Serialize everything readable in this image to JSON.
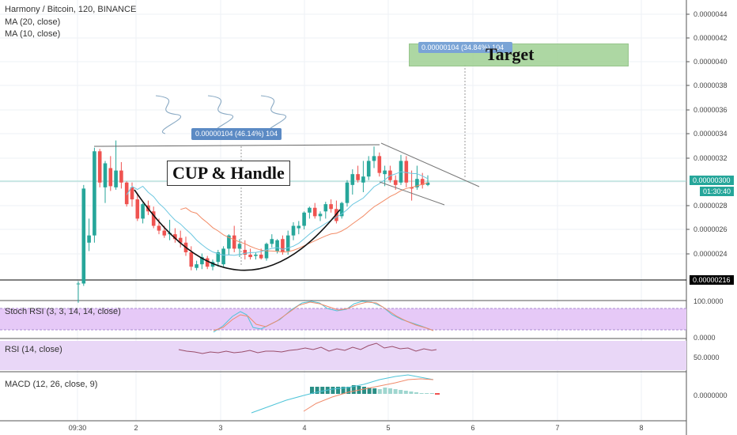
{
  "legend": {
    "title": "Harmony / Bitcoin, 120, BINANCE",
    "ma20": "MA (20, close)",
    "ma10": "MA (10, close)"
  },
  "colors": {
    "up": "#26a69a",
    "down": "#ef5350",
    "ma20": "#f28b66",
    "ma10": "#6cc7e0",
    "grid": "#eef1f5",
    "rsi_bg": "#e9d7f7",
    "stoch_bg": "#e6c9f7",
    "target_box": "#a5d39a",
    "measure_box": "#5b8ac4",
    "current_price_box": "#26a69a",
    "support_price_box": "#000000"
  },
  "annotations": {
    "cup_handle": "CUP & Handle",
    "target": "Target",
    "measure_cup": "0.00000104 (46.14%) 104",
    "measure_target": "0.00000104 (34.84%) 104"
  },
  "price_axis": {
    "ticks": [
      "0.00000440",
      "0.00000420",
      "0.00000400",
      "0.00000380",
      "0.00000360",
      "0.00000340",
      "0.00000320",
      "0.00000280",
      "0.00000260",
      "0.00000240"
    ],
    "current_price": "0.00000300",
    "countdown": "01:30:40",
    "support_price": "0.00000216"
  },
  "time_axis": {
    "labels": [
      "09:30",
      "2",
      "3",
      "4",
      "5",
      "6",
      "7",
      "8"
    ]
  },
  "panes": {
    "stoch_rsi": {
      "label": "Stoch RSI (3, 3, 14, 14, close)",
      "ticks": [
        "100.0000",
        "0.0000"
      ]
    },
    "rsi": {
      "label": "RSI (14, close)",
      "ticks": [
        "50.0000"
      ]
    },
    "macd": {
      "label": "MACD (12, 26, close, 9)",
      "ticks": [
        "0.00000000"
      ]
    }
  },
  "chart_data": {
    "type": "candlestick",
    "title": "Harmony / Bitcoin, 120, BINANCE",
    "y_range": [
      2e-06,
      4.5e-06
    ],
    "x_range": [
      0,
      73
    ],
    "series": [
      {
        "name": "MA (20, close)"
      },
      {
        "name": "MA (10, close)"
      }
    ],
    "candles": [
      {
        "o": 2.16e-06,
        "h": 2.18e-06,
        "l": 2e-06,
        "c": 2.16e-06
      },
      {
        "o": 2.16e-06,
        "h": 2.98e-06,
        "l": 2.14e-06,
        "c": 2.95e-06
      },
      {
        "o": 2.5e-06,
        "h": 2.7e-06,
        "l": 2.43e-06,
        "c": 2.56e-06
      },
      {
        "o": 2.56e-06,
        "h": 3.29e-06,
        "l": 2.5e-06,
        "c": 3.26e-06
      },
      {
        "o": 3.26e-06,
        "h": 3.28e-06,
        "l": 2.96e-06,
        "c": 3e-06
      },
      {
        "o": 2.96e-06,
        "h": 3.18e-06,
        "l": 2.83e-06,
        "c": 3.16e-06
      },
      {
        "o": 3.12e-06,
        "h": 3.22e-06,
        "l": 2.93e-06,
        "c": 2.97e-06
      },
      {
        "o": 2.96e-06,
        "h": 3.35e-06,
        "l": 2.94e-06,
        "c": 3.1e-06
      },
      {
        "o": 3.1e-06,
        "h": 3.17e-06,
        "l": 2.95e-06,
        "c": 3e-06
      },
      {
        "o": 3e-06,
        "h": 3.01e-06,
        "l": 2.8e-06,
        "c": 2.82e-06
      },
      {
        "o": 2.96e-06,
        "h": 3e-06,
        "l": 2.8e-06,
        "c": 2.86e-06
      },
      {
        "o": 2.86e-06,
        "h": 2.91e-06,
        "l": 2.68e-06,
        "c": 2.7e-06
      },
      {
        "o": 2.7e-06,
        "h": 2.83e-06,
        "l": 2.66e-06,
        "c": 2.82e-06
      },
      {
        "o": 2.81e-06,
        "h": 2.85e-06,
        "l": 2.73e-06,
        "c": 2.76e-06
      },
      {
        "o": 2.76e-06,
        "h": 2.8e-06,
        "l": 2.62e-06,
        "c": 2.64e-06
      },
      {
        "o": 2.64e-06,
        "h": 2.7e-06,
        "l": 2.57e-06,
        "c": 2.6e-06
      },
      {
        "o": 2.6e-06,
        "h": 2.64e-06,
        "l": 2.54e-06,
        "c": 2.56e-06
      },
      {
        "o": 2.57e-06,
        "h": 2.69e-06,
        "l": 2.52e-06,
        "c": 2.58e-06
      },
      {
        "o": 2.57e-06,
        "h": 2.62e-06,
        "l": 2.5e-06,
        "c": 2.53e-06
      },
      {
        "o": 2.54e-06,
        "h": 2.6e-06,
        "l": 2.46e-06,
        "c": 2.5e-06
      },
      {
        "o": 2.5e-06,
        "h": 2.55e-06,
        "l": 2.39e-06,
        "c": 2.42e-06
      },
      {
        "o": 2.42e-06,
        "h": 2.47e-06,
        "l": 2.27e-06,
        "c": 2.3e-06
      },
      {
        "o": 2.29e-06,
        "h": 2.35e-06,
        "l": 2.27e-06,
        "c": 2.32e-06
      },
      {
        "o": 2.32e-06,
        "h": 2.41e-06,
        "l": 2.28e-06,
        "c": 2.38e-06
      },
      {
        "o": 2.37e-06,
        "h": 2.39e-06,
        "l": 2.28e-06,
        "c": 2.3e-06
      },
      {
        "o": 2.3e-06,
        "h": 2.36e-06,
        "l": 2.27e-06,
        "c": 2.34e-06
      },
      {
        "o": 2.34e-06,
        "h": 2.44e-06,
        "l": 2.3e-06,
        "c": 2.42e-06
      },
      {
        "o": 2.32e-06,
        "h": 2.47e-06,
        "l": 2.3e-06,
        "c": 2.45e-06
      },
      {
        "o": 2.45e-06,
        "h": 2.57e-06,
        "l": 2.4e-06,
        "c": 2.56e-06
      },
      {
        "o": 2.56e-06,
        "h": 2.64e-06,
        "l": 2.42e-06,
        "c": 2.45e-06
      },
      {
        "o": 2.45e-06,
        "h": 2.53e-06,
        "l": 2.38e-06,
        "c": 2.49e-06
      },
      {
        "o": 2.44e-06,
        "h": 2.52e-06,
        "l": 2.36e-06,
        "c": 2.4e-06
      },
      {
        "o": 2.4e-06,
        "h": 2.45e-06,
        "l": 2.36e-06,
        "c": 2.38e-06
      },
      {
        "o": 2.39e-06,
        "h": 2.42e-06,
        "l": 2.36e-06,
        "c": 2.4e-06
      },
      {
        "o": 2.4e-06,
        "h": 2.45e-06,
        "l": 2.36e-06,
        "c": 2.37e-06
      },
      {
        "o": 2.37e-06,
        "h": 2.5e-06,
        "l": 2.35e-06,
        "c": 2.49e-06
      },
      {
        "o": 2.49e-06,
        "h": 2.57e-06,
        "l": 2.46e-06,
        "c": 2.53e-06
      },
      {
        "o": 2.43e-06,
        "h": 2.53e-06,
        "l": 2.41e-06,
        "c": 2.52e-06
      },
      {
        "o": 2.53e-06,
        "h": 2.56e-06,
        "l": 2.4e-06,
        "c": 2.42e-06
      },
      {
        "o": 2.43e-06,
        "h": 2.6e-06,
        "l": 2.4e-06,
        "c": 2.56e-06
      },
      {
        "o": 2.56e-06,
        "h": 2.67e-06,
        "l": 2.52e-06,
        "c": 2.64e-06
      },
      {
        "o": 2.62e-06,
        "h": 2.68e-06,
        "l": 2.57e-06,
        "c": 2.64e-06
      },
      {
        "o": 2.64e-06,
        "h": 2.76e-06,
        "l": 2.61e-06,
        "c": 2.75e-06
      },
      {
        "o": 2.75e-06,
        "h": 2.8e-06,
        "l": 2.7e-06,
        "c": 2.79e-06
      },
      {
        "o": 2.79e-06,
        "h": 2.83e-06,
        "l": 2.7e-06,
        "c": 2.72e-06
      },
      {
        "o": 2.72e-06,
        "h": 2.76e-06,
        "l": 2.68e-06,
        "c": 2.74e-06
      },
      {
        "o": 2.76e-06,
        "h": 2.84e-06,
        "l": 2.7e-06,
        "c": 2.82e-06
      },
      {
        "o": 2.82e-06,
        "h": 2.86e-06,
        "l": 2.75e-06,
        "c": 2.78e-06
      },
      {
        "o": 2.78e-06,
        "h": 2.85e-06,
        "l": 2.66e-06,
        "c": 2.68e-06
      },
      {
        "o": 2.72e-06,
        "h": 2.84e-06,
        "l": 2.7e-06,
        "c": 2.83e-06
      },
      {
        "o": 2.83e-06,
        "h": 3.02e-06,
        "l": 2.8e-06,
        "c": 3e-06
      },
      {
        "o": 2.98e-06,
        "h": 3.11e-06,
        "l": 2.9e-06,
        "c": 3.07e-06
      },
      {
        "o": 3.07e-06,
        "h": 3.14e-06,
        "l": 3e-06,
        "c": 3.02e-06
      },
      {
        "o": 3e-06,
        "h": 3.18e-06,
        "l": 2.92e-06,
        "c": 3.05e-06
      },
      {
        "o": 3.05e-06,
        "h": 3.22e-06,
        "l": 3.02e-06,
        "c": 3.18e-06
      },
      {
        "o": 3.18e-06,
        "h": 3.3e-06,
        "l": 3.12e-06,
        "c": 3.22e-06
      },
      {
        "o": 3.22e-06,
        "h": 3.25e-06,
        "l": 3.05e-06,
        "c": 3.08e-06
      },
      {
        "o": 3.07e-06,
        "h": 3.14e-06,
        "l": 2.97e-06,
        "c": 3.1e-06
      },
      {
        "o": 3.1e-06,
        "h": 3.14e-06,
        "l": 3e-06,
        "c": 3.02e-06
      },
      {
        "o": 3.02e-06,
        "h": 3.06e-06,
        "l": 2.94e-06,
        "c": 2.98e-06
      },
      {
        "o": 3e-06,
        "h": 3.23e-06,
        "l": 2.98e-06,
        "c": 3.18e-06
      },
      {
        "o": 3.18e-06,
        "h": 3.22e-06,
        "l": 2.96e-06,
        "c": 3e-06
      },
      {
        "o": 2.96e-06,
        "h": 3.1e-06,
        "l": 2.85e-06,
        "c": 2.95e-06
      },
      {
        "o": 2.96e-06,
        "h": 3.14e-06,
        "l": 2.94e-06,
        "c": 3.03e-06
      },
      {
        "o": 3.03e-06,
        "h": 3.08e-06,
        "l": 2.95e-06,
        "c": 2.98e-06
      },
      {
        "o": 2.98e-06,
        "h": 3.06e-06,
        "l": 2.97e-06,
        "c": 3e-06
      }
    ]
  }
}
